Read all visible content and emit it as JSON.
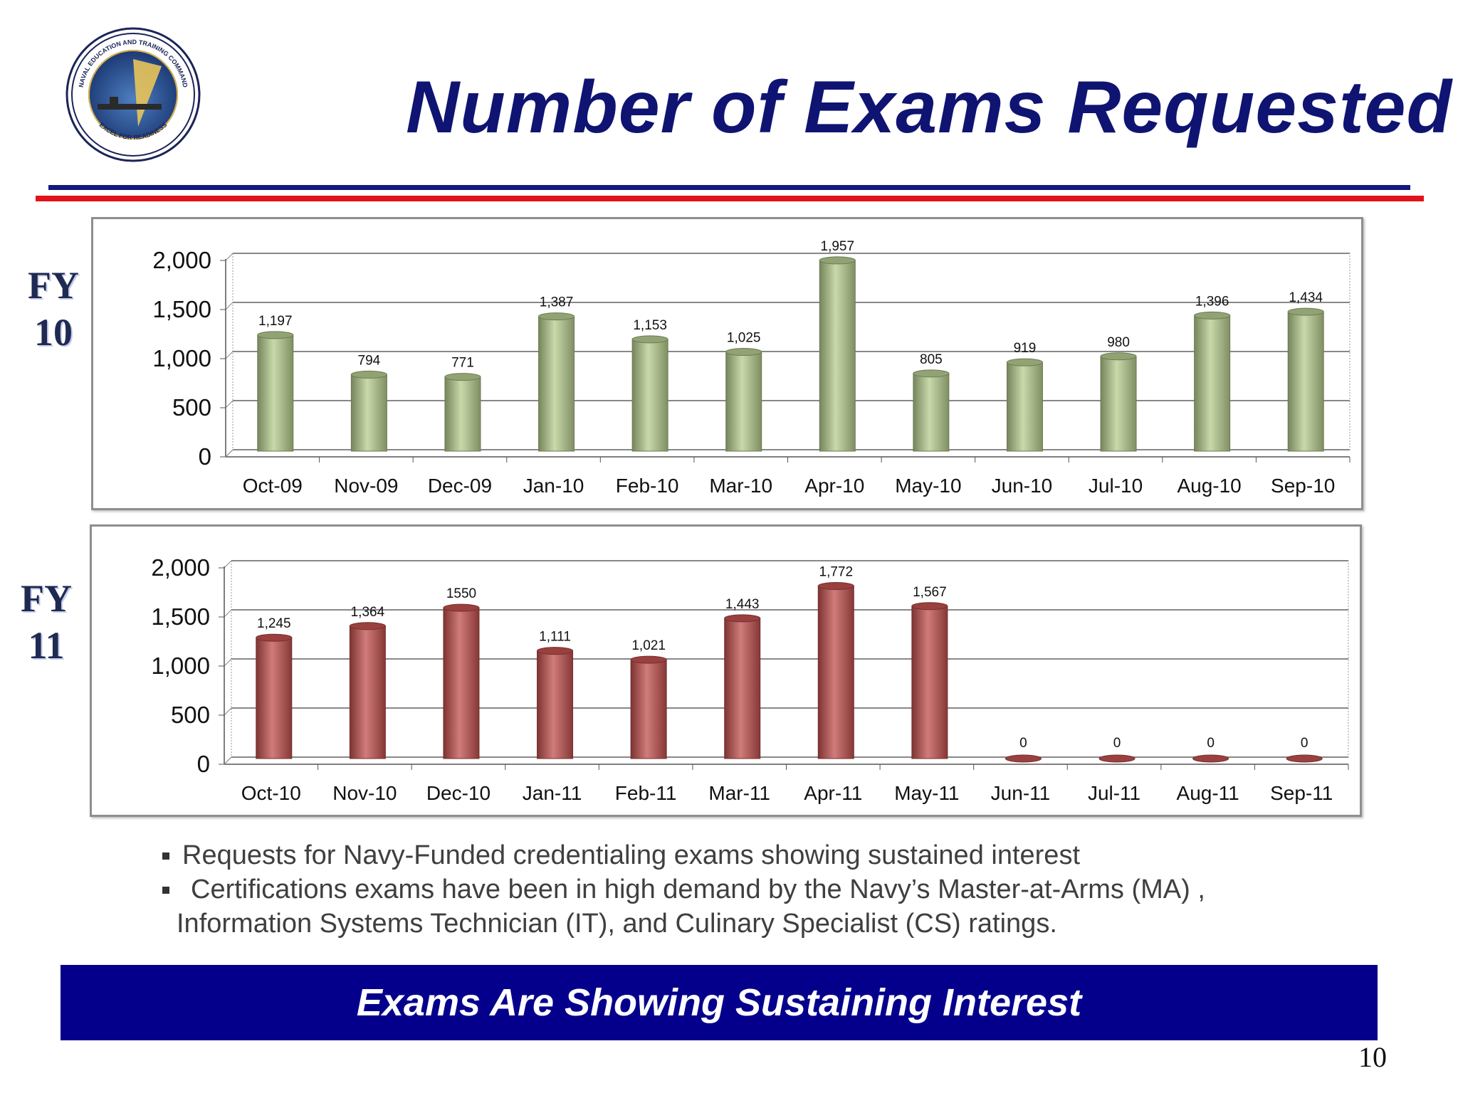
{
  "slide": {
    "title": "Number of Exams Requested",
    "page_number": "10",
    "banner_text": "Exams Are Showing Sustaining Interest",
    "logo_text": {
      "ring_top": "NAVAL EDUCATION AND TRAINING COMMAND",
      "ring_bottom": "EXCEL FOR READINESS"
    },
    "bullets": [
      "Requests for Navy-Funded credentialing exams showing sustained interest",
      "Certifications exams have been in high demand by the Navy’s Master-at-Arms (MA) ,",
      "Information Systems Technician (IT), and Culinary Specialist (CS) ratings."
    ],
    "fy_labels": [
      {
        "line1": "FY",
        "line2": "10"
      },
      {
        "line1": "FY",
        "line2": "11"
      }
    ]
  },
  "colors": {
    "title": "#0f1472",
    "rule_blue": "#131a7a",
    "rule_red": "#e3121a",
    "banner": "#05008c",
    "bar_green": "#b5cc8e",
    "bar_red": "#c0504d"
  },
  "chart_data": [
    {
      "type": "bar",
      "categories": [
        "Oct-09",
        "Nov-09",
        "Dec-09",
        "Jan-10",
        "Feb-10",
        "Mar-10",
        "Apr-10",
        "May-10",
        "Jun-10",
        "Jul-10",
        "Aug-10",
        "Sep-10"
      ],
      "values": [
        1197,
        794,
        771,
        1387,
        1153,
        1025,
        1957,
        805,
        919,
        980,
        1396,
        1434
      ],
      "data_labels": [
        "1,197",
        "794",
        "771",
        "1,387",
        "1,153",
        "1,025",
        "1,957",
        "805",
        "919",
        "980",
        "1,396",
        "1,434"
      ],
      "yticks": [
        "0",
        "500",
        "1,000",
        "1,500",
        "2,000"
      ],
      "ytick_values": [
        0,
        500,
        1000,
        1500,
        2000
      ],
      "ylim": [
        0,
        2000
      ],
      "grid": true,
      "color": "#b5cc8e"
    },
    {
      "type": "bar",
      "categories": [
        "Oct-10",
        "Nov-10",
        "Dec-10",
        "Jan-11",
        "Feb-11",
        "Mar-11",
        "Apr-11",
        "May-11",
        "Jun-11",
        "Jul-11",
        "Aug-11",
        "Sep-11"
      ],
      "values": [
        1245,
        1364,
        1550,
        1111,
        1021,
        1443,
        1772,
        1567,
        0,
        0,
        0,
        0
      ],
      "data_labels": [
        "1,245",
        "1,364",
        "1550",
        "1,111",
        "1,021",
        "1,443",
        "1,772",
        "1,567",
        "0",
        "0",
        "0",
        "0"
      ],
      "yticks": [
        "0",
        "500",
        "1,000",
        "1,500",
        "2,000"
      ],
      "ytick_values": [
        0,
        500,
        1000,
        1500,
        2000
      ],
      "ylim": [
        0,
        2000
      ],
      "grid": true,
      "color": "#c0504d"
    }
  ]
}
